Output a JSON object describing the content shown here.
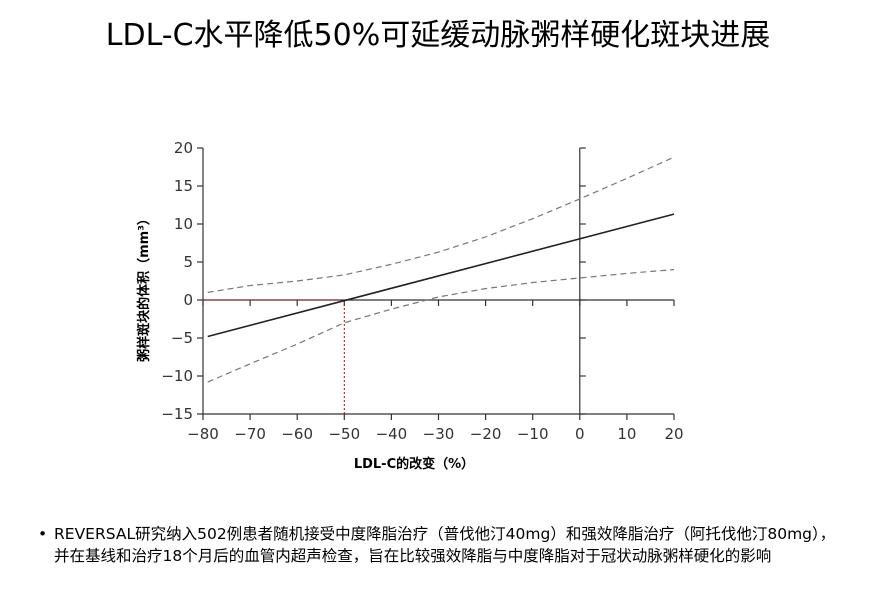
{
  "title": "LDL-C水平降低50%可延缓动脉粥样硬化斑块进展",
  "bullet": {
    "symbol": "•",
    "text": "REVERSAL研究纳入502例患者随机接受中度降脂治疗（普伐他汀40mg）和强效降脂治疗（阿托伐他汀80mg），并在基线和治疗18个月后的血管内超声检查，旨在比较强效降脂与中度降脂对于冠状动脉粥样硬化的影响"
  },
  "chart_data": {
    "type": "line",
    "title": "",
    "xlabel": "LDL-C的改变（%）",
    "ylabel": "粥样斑块的体积（mm³）",
    "xlim": [
      -80,
      20
    ],
    "ylim": [
      -15,
      20
    ],
    "x_ticks": [
      -80,
      -70,
      -60,
      -50,
      -40,
      -30,
      -20,
      -10,
      0,
      10,
      20
    ],
    "x_tick_labels": [
      "−80",
      "−70",
      "−60",
      "−50",
      "−40",
      "−30",
      "−20",
      "−10",
      "0",
      "10",
      "20"
    ],
    "y_ticks": [
      -15,
      -10,
      -5,
      0,
      5,
      10,
      15,
      20
    ],
    "y_tick_labels": [
      "−15",
      "−10",
      "−5",
      "0",
      "5",
      "10",
      "15",
      "20"
    ],
    "series": [
      {
        "style": "solid",
        "color": "#222222",
        "x": [
          -79,
          20
        ],
        "y": [
          -4.8,
          11.3
        ]
      },
      {
        "style": "dashed",
        "color": "#777777",
        "x": [
          -79,
          -70,
          -60,
          -50,
          -40,
          -30,
          -20,
          -10,
          0,
          10,
          20
        ],
        "y": [
          1.0,
          1.9,
          2.5,
          3.3,
          4.7,
          6.3,
          8.3,
          10.7,
          13.3,
          16.0,
          18.8
        ]
      },
      {
        "style": "dashed",
        "color": "#777777",
        "x": [
          -79,
          -70,
          -60,
          -50,
          -40,
          -30,
          -20,
          -10,
          0,
          10,
          20
        ],
        "y": [
          -10.8,
          -8.4,
          -5.8,
          -3.0,
          -1.2,
          0.4,
          1.5,
          2.3,
          2.9,
          3.5,
          4.0
        ]
      }
    ],
    "reference_lines": [
      {
        "color": "#c00000",
        "style": "dotted",
        "from": [
          -80,
          0
        ],
        "to": [
          -50,
          0
        ]
      },
      {
        "color": "#c00000",
        "style": "dotted",
        "from": [
          -50,
          0
        ],
        "to": [
          -50,
          -15
        ]
      }
    ],
    "vertical_line_at_x": 0,
    "zero_line": true,
    "grid": false
  }
}
